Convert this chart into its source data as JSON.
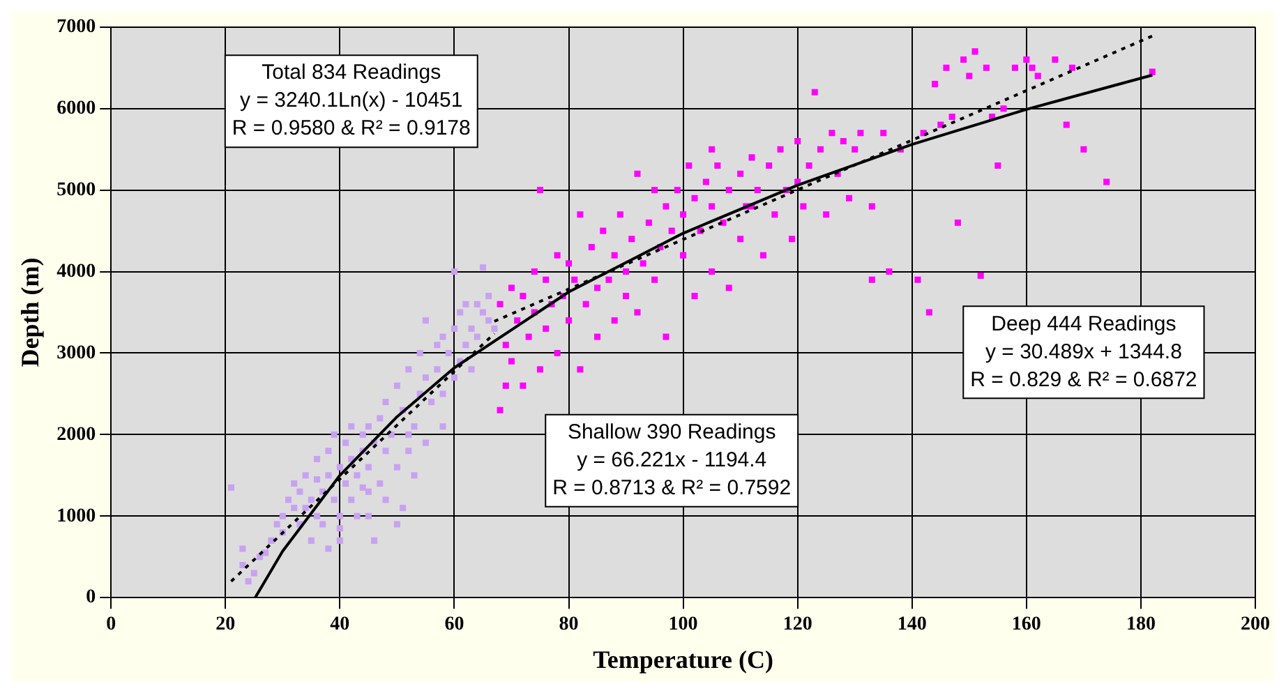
{
  "chart_data": {
    "type": "scatter",
    "xlabel": "Temperature (C)",
    "ylabel": "Depth (m)",
    "xlim": [
      0,
      200
    ],
    "xticks": [
      0,
      20,
      40,
      60,
      80,
      100,
      120,
      140,
      160,
      180,
      200
    ],
    "ylim": [
      0,
      7000
    ],
    "yticks": [
      0,
      1000,
      2000,
      3000,
      4000,
      5000,
      6000,
      7000
    ],
    "grid": true,
    "marker": "square",
    "annotations": [
      "Total 834 Readings\ny = 3240.1Ln(x) - 10451\nR = 0.9580 & R² = 0.9178",
      "Shallow 390 Readings\ny = 66.221x - 1194.4\nR = 0.8713 & R² = 0.7592",
      "Deep 444 Readings\ny = 30.489x + 1344.8\nR = 0.829 & R² = 0.6872"
    ],
    "series": [
      {
        "type": "scatter",
        "color": "#c8a2f0",
        "x": [
          21,
          23,
          23,
          24,
          25,
          26,
          27,
          28,
          29,
          30,
          30,
          31,
          32,
          32,
          33,
          33,
          34,
          34,
          35,
          35,
          36,
          36,
          37,
          37,
          38,
          38,
          38,
          39,
          39,
          40,
          40,
          40,
          41,
          41,
          42,
          42,
          42,
          43,
          43,
          44,
          44,
          45,
          45,
          45,
          46,
          46,
          47,
          47,
          48,
          48,
          49,
          50,
          50,
          50,
          51,
          51,
          52,
          52,
          53,
          53,
          54,
          54,
          55,
          55,
          56,
          57,
          57,
          58,
          58,
          59,
          60,
          60,
          60,
          61,
          61,
          62,
          62,
          63,
          63,
          64,
          64,
          65,
          65,
          66,
          66,
          67,
          40,
          36,
          44,
          48,
          55,
          58,
          45,
          52
        ],
        "values": [
          1350,
          600,
          400,
          200,
          300,
          500,
          550,
          700,
          900,
          1000,
          800,
          1200,
          1100,
          1400,
          900,
          1300,
          1500,
          1100,
          700,
          1200,
          1700,
          1000,
          1300,
          900,
          1800,
          1500,
          600,
          1200,
          2000,
          1600,
          1000,
          700,
          1400,
          1900,
          2100,
          1700,
          1200,
          1500,
          1000,
          1800,
          2000,
          1300,
          1600,
          1000,
          1900,
          700,
          1400,
          2200,
          1800,
          1200,
          2000,
          2600,
          1600,
          900,
          2300,
          1100,
          1800,
          2800,
          2100,
          1500,
          2500,
          3000,
          2700,
          1900,
          2400,
          3100,
          2800,
          2500,
          3200,
          3000,
          4000,
          2700,
          3300,
          3500,
          2900,
          3100,
          3600,
          3300,
          2800,
          3600,
          3200,
          4050,
          3500,
          3400,
          3700,
          3300,
          850,
          1450,
          1350,
          2400,
          3400,
          2100,
          2100,
          2000
        ]
      },
      {
        "type": "scatter",
        "color": "#ff00ff",
        "x": [
          68,
          68,
          69,
          69,
          70,
          70,
          71,
          72,
          72,
          73,
          74,
          74,
          75,
          75,
          76,
          76,
          77,
          78,
          78,
          79,
          80,
          80,
          81,
          82,
          82,
          83,
          84,
          85,
          85,
          86,
          87,
          88,
          88,
          89,
          90,
          90,
          91,
          92,
          92,
          93,
          94,
          95,
          96,
          97,
          97,
          98,
          99,
          100,
          100,
          101,
          102,
          102,
          103,
          104,
          105,
          105,
          106,
          107,
          108,
          108,
          110,
          110,
          111,
          112,
          113,
          114,
          115,
          116,
          117,
          118,
          119,
          120,
          120,
          121,
          122,
          123,
          124,
          125,
          126,
          127,
          128,
          129,
          130,
          131,
          133,
          133,
          135,
          136,
          138,
          141,
          142,
          143,
          144,
          145,
          146,
          147,
          148,
          149,
          150,
          151,
          152,
          153,
          154,
          156,
          158,
          160,
          162,
          165,
          167,
          168,
          170,
          174,
          182,
          161,
          155,
          105,
          95,
          112
        ],
        "values": [
          2300,
          3600,
          2600,
          3100,
          3800,
          2900,
          3400,
          3700,
          2600,
          3200,
          4000,
          3500,
          5000,
          2800,
          3900,
          3300,
          3600,
          4200,
          3000,
          3700,
          4100,
          3400,
          3900,
          2800,
          4700,
          3600,
          4300,
          3800,
          3200,
          4500,
          3900,
          4200,
          3400,
          4700,
          4000,
          3700,
          4400,
          5200,
          3500,
          4100,
          4600,
          3900,
          4300,
          4800,
          3200,
          4500,
          5000,
          4700,
          4200,
          5300,
          4900,
          3700,
          4500,
          5100,
          4800,
          4000,
          5300,
          4600,
          5000,
          3800,
          5200,
          4400,
          4800,
          5400,
          5000,
          4200,
          5300,
          4700,
          5500,
          5000,
          4400,
          5600,
          5100,
          4800,
          5300,
          6200,
          5500,
          4700,
          5700,
          5200,
          5600,
          4900,
          5500,
          5700,
          4800,
          3900,
          5700,
          4000,
          5500,
          3900,
          5700,
          3500,
          6300,
          5800,
          6500,
          5900,
          4600,
          6600,
          6400,
          6700,
          3950,
          6500,
          5900,
          6000,
          6500,
          6600,
          6400,
          6600,
          5800,
          6500,
          5500,
          5100,
          6450,
          6500,
          5300,
          5500,
          5000,
          4800
        ]
      },
      {
        "type": "line",
        "color": "#000000",
        "marker": "none",
        "line_style": "solid",
        "x": [
          25.2,
          30,
          40,
          50,
          60,
          80,
          100,
          120,
          140,
          160,
          182
        ],
        "values": [
          0,
          570,
          1500,
          2220,
          2820,
          3750,
          4470,
          5060,
          5560,
          5990,
          6410
        ]
      },
      {
        "type": "line",
        "color": "#000000",
        "marker": "none",
        "line_style": "dotted",
        "x": [
          21,
          67
        ],
        "values": [
          200,
          3240
        ]
      },
      {
        "type": "line",
        "color": "#000000",
        "marker": "none",
        "line_style": "dotted",
        "x": [
          67,
          182
        ],
        "values": [
          3390,
          6890
        ]
      }
    ]
  }
}
